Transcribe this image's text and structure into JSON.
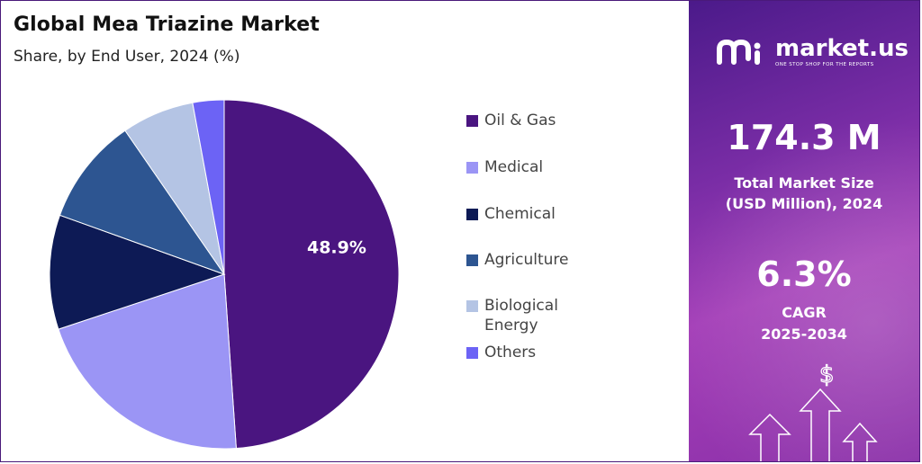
{
  "title": "Global Mea Triazine Market",
  "subtitle": "Share, by End User, 2024 (%)",
  "chart_data": {
    "type": "pie",
    "title": "Global Mea Triazine Market",
    "subtitle": "Share, by End User, 2024 (%)",
    "categories": [
      "Oil & Gas",
      "Medical",
      "Chemical",
      "Agriculture",
      "Biological Energy",
      "Others"
    ],
    "values": [
      48.9,
      21.0,
      10.6,
      9.9,
      6.7,
      2.9
    ],
    "data_labels": [
      "48.9%",
      "",
      "",
      "",
      "",
      ""
    ],
    "colors": [
      "#4a1580",
      "#9b95f5",
      "#0d1a55",
      "#2d5591",
      "#b4c4e4",
      "#6c63f5"
    ],
    "start_angle_deg": 0,
    "direction": "clockwise",
    "legend_position": "right"
  },
  "legend": [
    {
      "label": "Oil & Gas",
      "color": "#4a1580"
    },
    {
      "label": "Medical",
      "color": "#9b95f5"
    },
    {
      "label": "Chemical",
      "color": "#0d1a55"
    },
    {
      "label": "Agriculture",
      "color": "#2d5591"
    },
    {
      "label": "Biological\nEnergy",
      "color": "#b4c4e4"
    },
    {
      "label": "Others",
      "color": "#6c63f5"
    }
  ],
  "brand": {
    "name": "market.us",
    "tagline": "ONE STOP SHOP FOR THE REPORTS"
  },
  "stats": {
    "market_size_value": "174.3 M",
    "market_size_label_1": "Total Market Size",
    "market_size_label_2": "(USD Million), 2024",
    "cagr_value": "6.3%",
    "cagr_label_1": "CAGR",
    "cagr_label_2": "2025-2034"
  },
  "decor": {
    "dollar_sign": "$"
  }
}
